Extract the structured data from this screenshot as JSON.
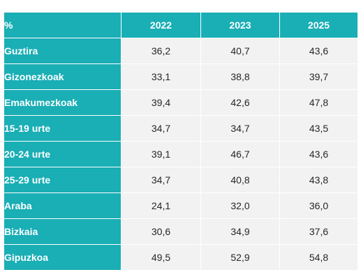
{
  "table": {
    "corner_label": "%",
    "years": [
      "2022",
      "2023",
      "2025"
    ],
    "rows": [
      {
        "label": "Guztira",
        "values": [
          "36,2",
          "40,7",
          "43,6"
        ]
      },
      {
        "label": "Gizonezkoak",
        "values": [
          "33,1",
          "38,8",
          "39,7"
        ]
      },
      {
        "label": "Emakumezkoak",
        "values": [
          "39,4",
          "42,6",
          "47,8"
        ]
      },
      {
        "label": "15-19 urte",
        "values": [
          "34,7",
          "34,7",
          "43,5"
        ]
      },
      {
        "label": "20-24 urte",
        "values": [
          "39,1",
          "46,7",
          "43,6"
        ]
      },
      {
        "label": "25-29 urte",
        "values": [
          "34,7",
          "40,8",
          "43,8"
        ]
      },
      {
        "label": "Araba",
        "values": [
          "24,1",
          "32,0",
          "36,0"
        ]
      },
      {
        "label": "Bizkaia",
        "values": [
          "30,6",
          "34,9",
          "37,6"
        ]
      },
      {
        "label": "Gipuzkoa",
        "values": [
          "49,5",
          "52,9",
          "54,8"
        ]
      }
    ]
  },
  "colors": {
    "header_bg": "#1aaeb5",
    "header_text": "#ffffff",
    "cell_bg": "#f2f2f2",
    "cell_text": "#262626"
  }
}
